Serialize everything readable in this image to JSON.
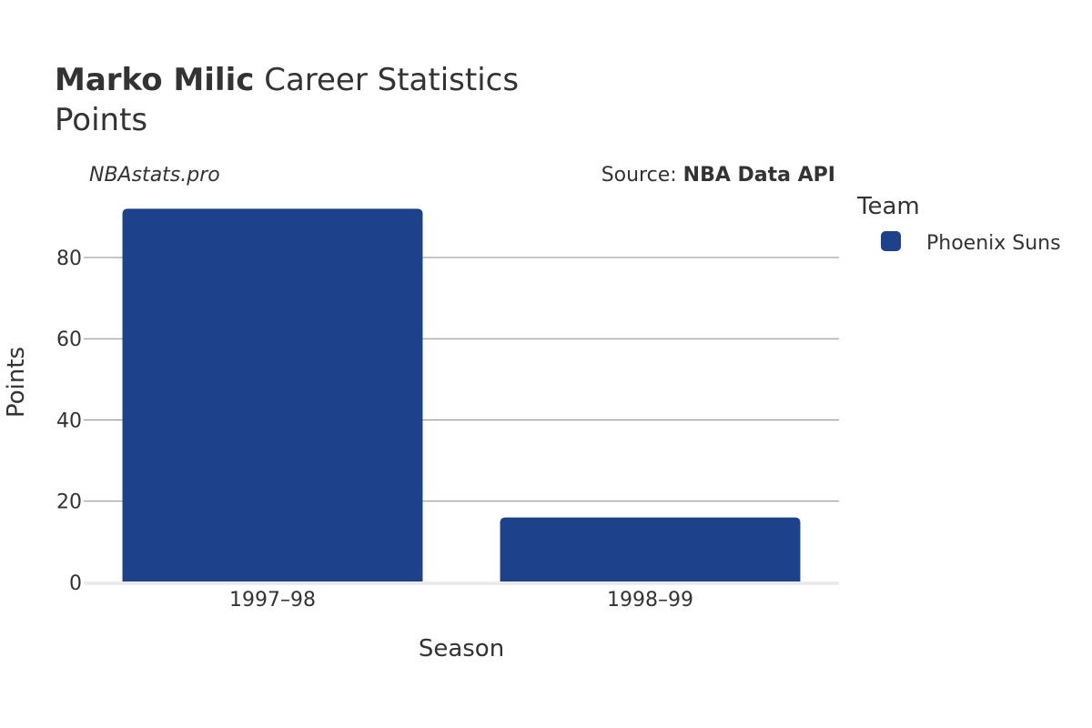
{
  "header": {
    "title_bold": "Marko Milic",
    "title_rest": " Career Statistics",
    "subtitle": "Points"
  },
  "watermark": "NBAstats.pro",
  "source": {
    "prefix": "Source: ",
    "name": "NBA Data API"
  },
  "legend": {
    "title": "Team",
    "entries": [
      {
        "label": "Phoenix Suns",
        "color": "#1d428a"
      }
    ]
  },
  "chart_data": {
    "type": "bar",
    "categories": [
      "1997–98",
      "1998–99"
    ],
    "series": [
      {
        "name": "Phoenix Suns",
        "values": [
          92,
          16
        ],
        "color": "#1d428a"
      }
    ],
    "xlabel": "Season",
    "ylabel": "Points",
    "ylim": [
      0,
      95
    ],
    "yticks": [
      0,
      20,
      40,
      60,
      80
    ],
    "grid": true,
    "legend_position": "right"
  }
}
